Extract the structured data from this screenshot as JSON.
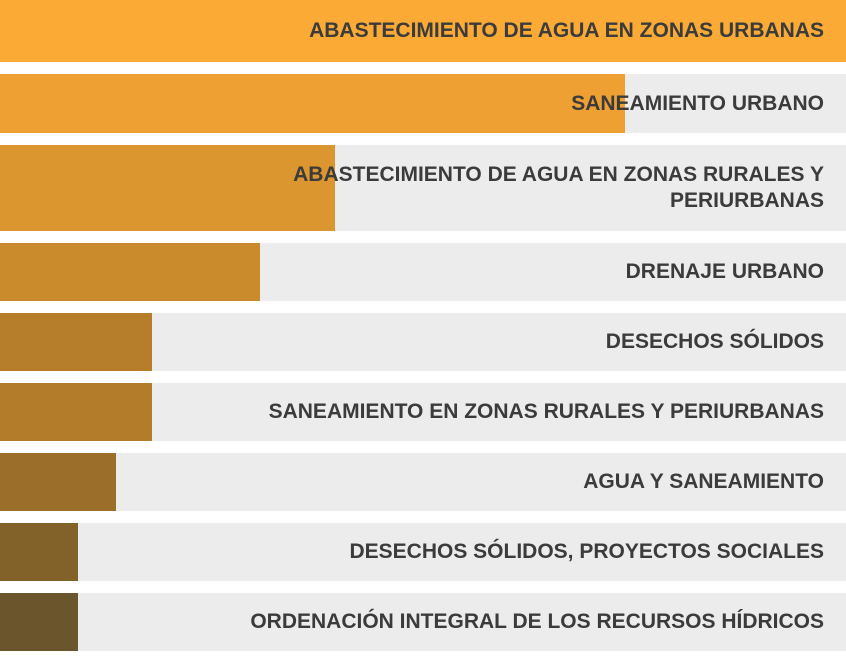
{
  "chart_data": {
    "type": "bar",
    "orientation": "horizontal",
    "categories": [
      "ABASTECIMIENTO DE AGUA EN ZONAS URBANAS",
      "SANEAMIENTO URBANO",
      "ABASTECIMIENTO DE AGUA EN ZONAS RURALES Y PERIURBANAS",
      "DRENAJE URBANO",
      "DESECHOS SÓLIDOS",
      "SANEAMIENTO EN ZONAS RURALES Y PERIURBANAS",
      "AGUA Y SANEAMIENTO",
      "DESECHOS SÓLIDOS, PROYECTOS SOCIALES",
      "ORDENACIÓN INTEGRAL DE LOS RECURSOS HÍDRICOS"
    ],
    "values": [
      100,
      73.9,
      39.6,
      30.7,
      18,
      18,
      13.7,
      9.2,
      9.2
    ],
    "colors": [
      "#fbab35",
      "#efa033",
      "#dc962f",
      "#c98b2c",
      "#b67e2a",
      "#b27c2a",
      "#9b6f29",
      "#83622a",
      "#6b552c"
    ],
    "xlim": [
      0,
      100
    ]
  }
}
